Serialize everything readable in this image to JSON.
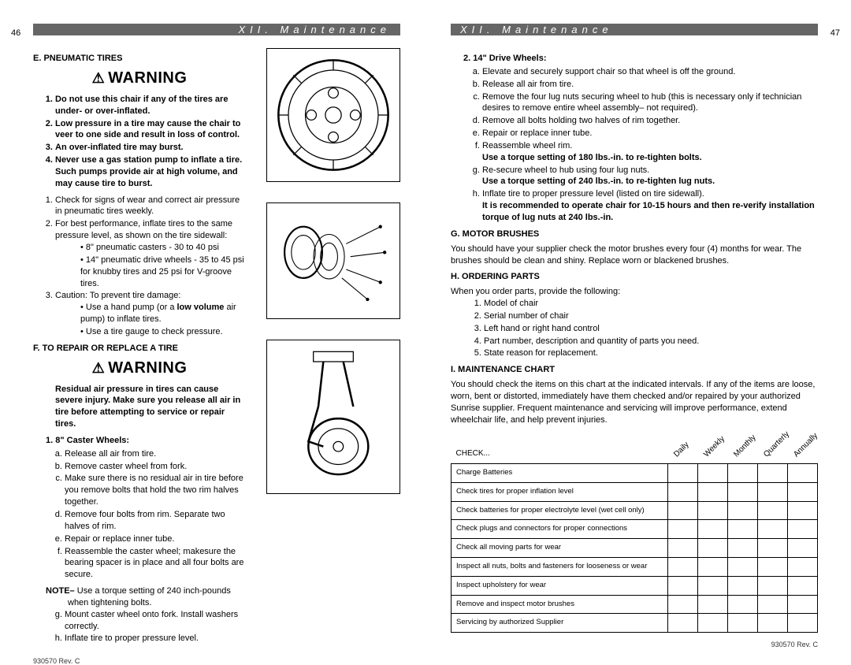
{
  "leftPage": {
    "pageNum": "46",
    "headerTitle": "XII. Maintenance",
    "footer": "930570 Rev. C",
    "sectionE": {
      "title": "E. PNEUMATIC TIRES",
      "warning": "WARNING",
      "boldItems": [
        "Do not use this chair if any of the tires are under- or over-inflated.",
        "Low pressure in a tire may cause the chair to veer to one side and result in loss of control.",
        "An over-inflated tire may burst.",
        "Never use a gas station pump to inflate a tire. Such pumps provide air at high volume, and may cause tire to burst."
      ],
      "items": [
        "Check for signs of wear and correct air pressure in pneumatic tires weekly.",
        "For best performance, inflate tires to the same pressure level, as shown on the tire sidewall:",
        "Caution: To prevent tire damage:"
      ],
      "bullets2": [
        "8\" pneumatic casters - 30 to 40 psi",
        "14\" pneumatic drive wheels - 35 to 45 psi for knubby tires and 25 psi for V-groove tires."
      ],
      "bullets3a": "Use a hand pump (or a ",
      "bullets3bold": "low volume",
      "bullets3b": " air pump) to inflate tires.",
      "bullets3c": "Use a tire gauge to check pressure."
    },
    "sectionF": {
      "title": "F. TO REPAIR OR REPLACE A TIRE",
      "warning": "WARNING",
      "warnText": "Residual air pressure in tires can cause severe injury. Make sure you release all air in tire before attempting to service or repair tires.",
      "sub1Title": "1. 8\" Caster Wheels:",
      "sub1": [
        "Release all air from tire.",
        "Remove caster wheel from fork.",
        "Make sure there is no residual air in tire before you remove bolts that hold the two rim halves together.",
        "Remove four bolts from rim. Separate two halves of rim.",
        "Repair or replace inner tube.",
        "Reassemble the caster wheel; makesure the bearing spacer is in place and all four bolts are secure."
      ],
      "noteLabel": "NOTE–",
      "noteText": " Use a torque setting of 240 inch-pounds when tightening bolts.",
      "sub1cont": [
        "Mount caster wheel onto fork. Install washers correctly.",
        "Inflate tire to proper pressure level."
      ]
    }
  },
  "rightPage": {
    "pageNum": "47",
    "headerTitle": "XII. Maintenance",
    "footer": "930570 Rev. C",
    "sub2Title": "2. 14\" Drive Wheels:",
    "sub2": [
      "Elevate and securely support chair so that wheel is off the ground.",
      "Release all air from tire.",
      "Remove the four lug nuts securing wheel to hub (this is necessary only if technician desires to remove entire wheel assembly– not required).",
      "Remove all bolts holding two halves of rim together.",
      "Repair or replace inner tube.",
      "Reassemble wheel rim."
    ],
    "bold1": "Use a torque setting of 180 lbs.-in. to re-tighten bolts.",
    "sub2g": "Re-secure wheel to hub using four lug nuts.",
    "bold2": "Use a torque setting of 240 lbs.-in. to re-tighten lug nuts.",
    "sub2h": "Inflate tire to proper pressure level (listed on tire sidewall).",
    "bold3": "It is recommended to operate chair for 10-15 hours and then re-verify installation torque of lug nuts at 240 lbs.-in.",
    "sectionG": {
      "title": "G. MOTOR BRUSHES",
      "text": "You should have your supplier check the motor brushes every four (4) months for wear. The brushes should be clean and shiny. Replace worn or blackened brushes."
    },
    "sectionH": {
      "title": "H. ORDERING PARTS",
      "intro": "When you order parts, provide the following:",
      "items": [
        "Model of chair",
        "Serial number of chair",
        "Left hand or right hand control",
        "Part number, description and quantity of parts you need.",
        "State reason for replacement."
      ]
    },
    "sectionI": {
      "title": "I. MAINTENANCE CHART",
      "text": "You should check the items on this chart at the indicated intervals. If any of the items are loose, worn, bent or distorted, immediately have them checked and/or repaired by your authorized Sunrise supplier. Frequent maintenance and servicing will improve performance, extend wheelchair life, and help prevent injuries.",
      "checkLabel": "CHECK...",
      "cols": [
        "Daily",
        "Weekly",
        "Monthly",
        "Quarterly",
        "Annually"
      ],
      "rows": [
        "Charge Batteries",
        "Check tires for proper inflation level",
        "Check batteries for proper electrolyte level (wet cell only)",
        "Check plugs and connectors for proper connections",
        "Check all moving parts for wear",
        "Inspect all nuts, bolts and fasteners for looseness or wear",
        "Inspect upholstery for wear",
        "Remove and inspect motor brushes",
        "Servicing by authorized Supplier"
      ]
    }
  }
}
